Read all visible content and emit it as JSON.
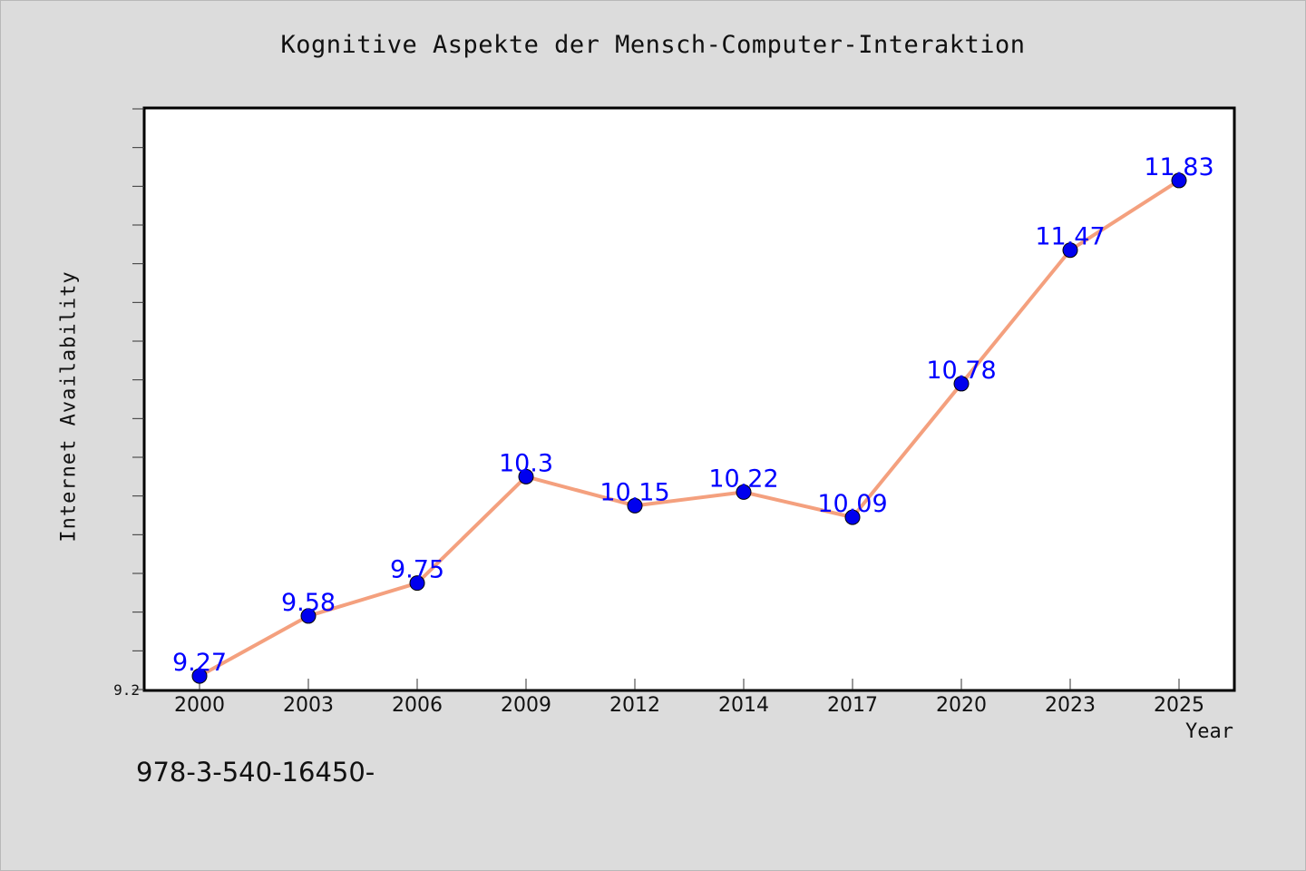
{
  "chart_data": {
    "type": "line",
    "title": "Kognitive Aspekte der Mensch-Computer-Interaktion",
    "xlabel": "Year",
    "ylabel": "Internet Availability",
    "categories": [
      "2000",
      "2003",
      "2006",
      "2009",
      "2012",
      "2014",
      "2017",
      "2020",
      "2023",
      "2025"
    ],
    "series": [
      {
        "values": [
          9.27,
          9.58,
          9.75,
          10.3,
          10.15,
          10.22,
          10.09,
          10.78,
          11.47,
          11.83
        ],
        "labels": [
          "9.27",
          "9.58",
          "9.75",
          "10.3",
          "10.15",
          "10.22",
          "10.09",
          "10.78",
          "11.47",
          "11.83"
        ]
      }
    ],
    "ylim": [
      9.2,
      12.2
    ],
    "y_tick_labels": [
      "9.2"
    ],
    "grid": false,
    "line_color": "#f4a07e",
    "marker_color": "#0000ee",
    "label_color": "#0000ff"
  },
  "footer": {
    "code": "978-3-540-16450-"
  }
}
